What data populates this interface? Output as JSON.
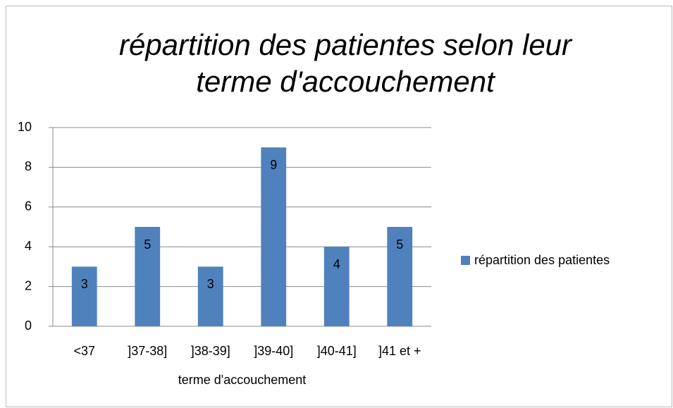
{
  "chart_data": {
    "type": "bar",
    "title": "répartition des patientes selon leur terme d'accouchement",
    "x_label": "terme d'accouchement",
    "categories": [
      "<37",
      "]37-38]",
      "]38-39]",
      "]39-40]",
      "]40-41]",
      "]41 et +"
    ],
    "series": [
      {
        "name": "répartition des patientes",
        "color": "#4f81bd",
        "values": [
          3,
          5,
          3,
          9,
          4,
          5
        ]
      }
    ],
    "ylim": [
      0,
      10
    ],
    "yticks": [
      0,
      2,
      4,
      6,
      8,
      10
    ],
    "grid": true,
    "legend": "right",
    "data_labels": true
  }
}
